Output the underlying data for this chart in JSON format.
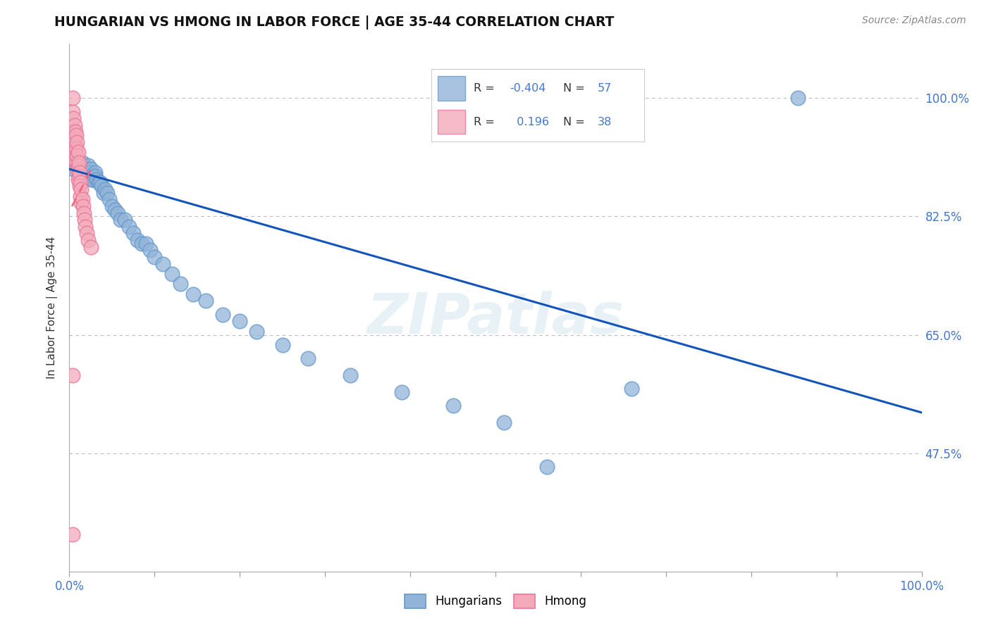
{
  "title": "HUNGARIAN VS HMONG IN LABOR FORCE | AGE 35-44 CORRELATION CHART",
  "source_text": "Source: ZipAtlas.com",
  "ylabel": "In Labor Force | Age 35-44",
  "xlim": [
    0,
    1.0
  ],
  "ylim": [
    0.3,
    1.08
  ],
  "yticks": [
    0.475,
    0.65,
    0.825,
    1.0
  ],
  "ytick_labels": [
    "47.5%",
    "65.0%",
    "82.5%",
    "100.0%"
  ],
  "R_hungarian": -0.404,
  "N_hungarian": 57,
  "R_hmong": 0.196,
  "N_hmong": 38,
  "legend_label_hungarian": "Hungarians",
  "legend_label_hmong": "Hmong",
  "blue_color": "#92B4D8",
  "blue_edge": "#6699CC",
  "pink_color": "#F4AABB",
  "pink_edge": "#E87799",
  "trendline_blue": "#1155BB",
  "trendline_pink": "#EE6677",
  "watermark": "ZIPatlas",
  "background_color": "#FFFFFF",
  "hungarian_x": [
    0.005,
    0.008,
    0.01,
    0.01,
    0.012,
    0.015,
    0.015,
    0.017,
    0.018,
    0.019,
    0.02,
    0.02,
    0.022,
    0.024,
    0.025,
    0.026,
    0.027,
    0.028,
    0.03,
    0.03,
    0.032,
    0.034,
    0.036,
    0.038,
    0.04,
    0.042,
    0.044,
    0.047,
    0.05,
    0.053,
    0.057,
    0.06,
    0.065,
    0.07,
    0.075,
    0.08,
    0.085,
    0.09,
    0.095,
    0.1,
    0.11,
    0.12,
    0.13,
    0.145,
    0.16,
    0.18,
    0.2,
    0.22,
    0.25,
    0.28,
    0.33,
    0.39,
    0.45,
    0.51,
    0.56,
    0.66,
    0.855
  ],
  "hungarian_y": [
    0.895,
    0.9,
    0.895,
    0.9,
    0.895,
    0.905,
    0.89,
    0.9,
    0.885,
    0.895,
    0.895,
    0.895,
    0.9,
    0.89,
    0.895,
    0.88,
    0.885,
    0.88,
    0.89,
    0.885,
    0.88,
    0.875,
    0.875,
    0.87,
    0.86,
    0.865,
    0.86,
    0.85,
    0.84,
    0.835,
    0.83,
    0.82,
    0.82,
    0.81,
    0.8,
    0.79,
    0.785,
    0.785,
    0.775,
    0.765,
    0.755,
    0.74,
    0.725,
    0.71,
    0.7,
    0.68,
    0.67,
    0.655,
    0.635,
    0.615,
    0.59,
    0.565,
    0.545,
    0.52,
    0.455,
    0.57,
    1.0
  ],
  "hmong_x": [
    0.004,
    0.004,
    0.005,
    0.005,
    0.005,
    0.006,
    0.006,
    0.006,
    0.007,
    0.007,
    0.007,
    0.008,
    0.008,
    0.008,
    0.009,
    0.009,
    0.009,
    0.01,
    0.01,
    0.01,
    0.011,
    0.011,
    0.012,
    0.012,
    0.013,
    0.013,
    0.014,
    0.014,
    0.015,
    0.016,
    0.017,
    0.018,
    0.019,
    0.02,
    0.022,
    0.025,
    0.004,
    0.004
  ],
  "hmong_y": [
    1.0,
    0.98,
    0.97,
    0.95,
    0.94,
    0.96,
    0.94,
    0.92,
    0.95,
    0.93,
    0.91,
    0.945,
    0.925,
    0.905,
    0.935,
    0.915,
    0.895,
    0.92,
    0.9,
    0.88,
    0.905,
    0.885,
    0.89,
    0.87,
    0.875,
    0.855,
    0.865,
    0.845,
    0.85,
    0.84,
    0.83,
    0.82,
    0.81,
    0.8,
    0.79,
    0.78,
    0.59,
    0.355
  ],
  "trendline_h_x0": 0.0,
  "trendline_h_y0": 0.895,
  "trendline_h_x1": 1.0,
  "trendline_h_y1": 0.535,
  "trendline_m_x0": 0.003,
  "trendline_m_y0": 0.84,
  "trendline_m_x1": 0.028,
  "trendline_m_y1": 0.9
}
